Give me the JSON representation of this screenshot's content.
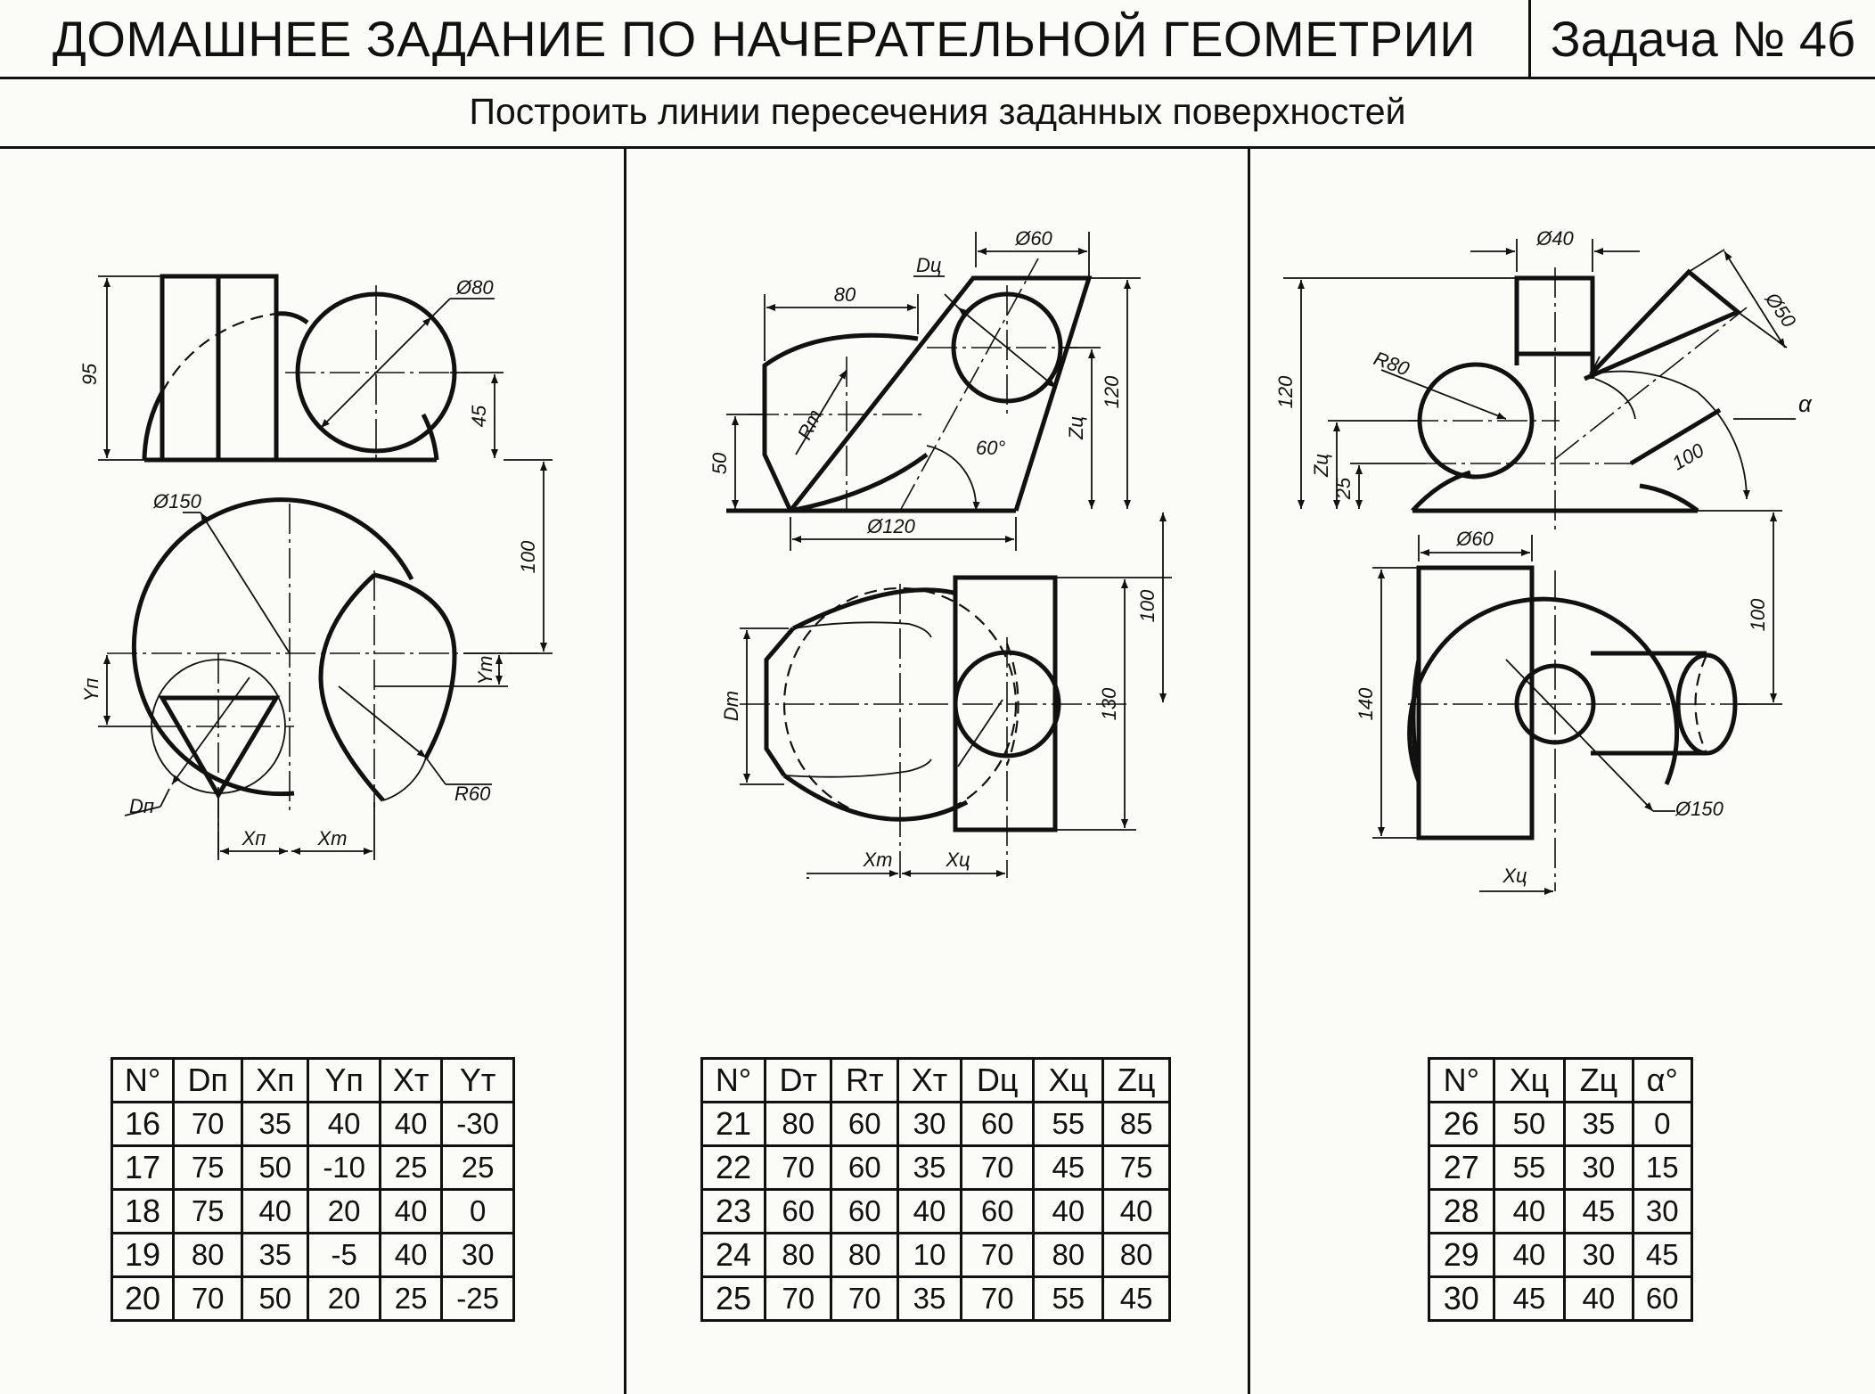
{
  "header": {
    "title": "ДОМАШНЕЕ ЗАДАНИЕ ПО НАЧЕРАТЕЛЬНОЙ ГЕОМЕТРИИ",
    "task": "Задача № 4б",
    "subtitle": "Построить линии пересечения заданных поверхностей"
  },
  "drawings": {
    "d1": {
      "dim_phi80": "Ø80",
      "dim_95": "95",
      "dim_45": "45",
      "dim_phi150": "Ø150",
      "dim_100": "100",
      "dim_yp": "Yп",
      "dim_yt": "Yт",
      "dim_dp": "Dп",
      "dim_xp": "Xп",
      "dim_xt": "Xт",
      "dim_r60": "R60"
    },
    "d2": {
      "dim_phi60": "Ø60",
      "dim_du": "Dц",
      "dim_80": "80",
      "dim_120": "120",
      "dim_zu": "Zц",
      "dim_rt": "Rт",
      "dim_50": "50",
      "dim_60deg": "60°",
      "dim_phi120": "Ø120",
      "dim_100": "100",
      "dim_dt": "Dт",
      "dim_130": "130",
      "dim_xt": "Xт",
      "dim_xu": "Xц"
    },
    "d3": {
      "dim_phi40": "Ø40",
      "dim_phi50": "Ø50",
      "dim_r80": "R80",
      "dim_120": "120",
      "dim_alpha": "α",
      "dim_zu": "Zц",
      "dim_25": "25",
      "dim_100l": "100",
      "dim_phi60": "Ø60",
      "dim_100": "100",
      "dim_140": "140",
      "dim_phi150": "Ø150",
      "dim_xu": "Xц"
    }
  },
  "tables": {
    "t1": {
      "headers": [
        "N°",
        "Dп",
        "Xп",
        "Yп",
        "Xт",
        "Yт"
      ],
      "rows": [
        [
          "16",
          "70",
          "35",
          "40",
          "40",
          "-30"
        ],
        [
          "17",
          "75",
          "50",
          "-10",
          "25",
          "25"
        ],
        [
          "18",
          "75",
          "40",
          "20",
          "40",
          "0"
        ],
        [
          "19",
          "80",
          "35",
          "-5",
          "40",
          "30"
        ],
        [
          "20",
          "70",
          "50",
          "20",
          "25",
          "-25"
        ]
      ]
    },
    "t2": {
      "headers": [
        "N°",
        "Dт",
        "Rт",
        "Xт",
        "Dц",
        "Xц",
        "Zц"
      ],
      "rows": [
        [
          "21",
          "80",
          "60",
          "30",
          "60",
          "55",
          "85"
        ],
        [
          "22",
          "70",
          "60",
          "35",
          "70",
          "45",
          "75"
        ],
        [
          "23",
          "60",
          "60",
          "40",
          "60",
          "40",
          "40"
        ],
        [
          "24",
          "80",
          "80",
          "10",
          "70",
          "80",
          "80"
        ],
        [
          "25",
          "70",
          "70",
          "35",
          "70",
          "55",
          "45"
        ]
      ]
    },
    "t3": {
      "headers": [
        "N°",
        "Xц",
        "Zц",
        "α°"
      ],
      "rows": [
        [
          "26",
          "50",
          "35",
          "0"
        ],
        [
          "27",
          "55",
          "30",
          "15"
        ],
        [
          "28",
          "40",
          "45",
          "30"
        ],
        [
          "29",
          "40",
          "30",
          "45"
        ],
        [
          "30",
          "45",
          "40",
          "60"
        ]
      ]
    }
  }
}
